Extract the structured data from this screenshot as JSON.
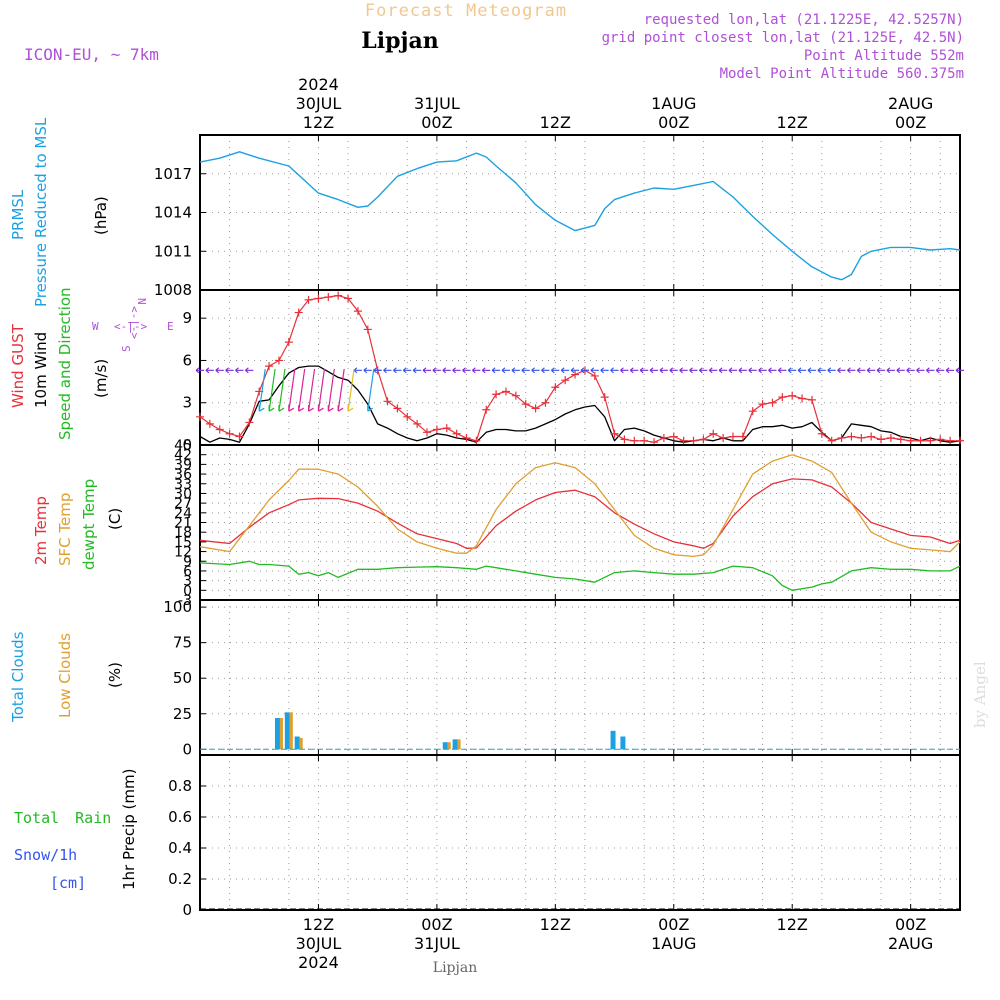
{
  "header": {
    "title": "Forecast Meteogram",
    "model": "ICON-EU, ~ 7km",
    "location": "Lipjan",
    "requested": "requested lon,lat (21.1225E, 42.5257N)",
    "gridpoint": "grid point closest lon,lat (21.125E, 42.5N)",
    "point_alt": "Point Altitude 552m",
    "model_alt": "Model Point Altitude 560.375m",
    "footer_location": "Lipjan",
    "watermark": "by Angel"
  },
  "time_axis": {
    "top_ticks": [
      {
        "h": 12,
        "lines": [
          "2024",
          "30JUL",
          "12Z"
        ]
      },
      {
        "h": 24,
        "lines": [
          "31JUL",
          "00Z"
        ]
      },
      {
        "h": 36,
        "lines": [
          "12Z"
        ]
      },
      {
        "h": 48,
        "lines": [
          "1AUG",
          "00Z"
        ]
      },
      {
        "h": 60,
        "lines": [
          "12Z"
        ]
      },
      {
        "h": 72,
        "lines": [
          "2AUG",
          "00Z"
        ]
      }
    ],
    "bottom_ticks": [
      {
        "h": 12,
        "lines": [
          "12Z",
          "30JUL",
          "2024"
        ]
      },
      {
        "h": 24,
        "lines": [
          "00Z",
          "31JUL"
        ]
      },
      {
        "h": 36,
        "lines": [
          "12Z"
        ]
      },
      {
        "h": 48,
        "lines": [
          "00Z",
          "1AUG"
        ]
      },
      {
        "h": 60,
        "lines": [
          "12Z"
        ]
      },
      {
        "h": 72,
        "lines": [
          "00Z",
          "2AUG"
        ]
      }
    ]
  },
  "panels": {
    "pressure": {
      "labels": [
        "PRMSL",
        "Pressure Reduced to MSL",
        "(hPa)"
      ]
    },
    "wind": {
      "labels": [
        "Wind GUST",
        "10m Wind",
        "Speed and Direction",
        "(m/s)"
      ],
      "compass": [
        "N",
        "S",
        "W",
        "E"
      ]
    },
    "temp": {
      "labels": [
        "2m Temp",
        "SFC Temp",
        "dewpt Temp",
        "(C)"
      ]
    },
    "clouds": {
      "labels": [
        "Total Clouds",
        "Low Clouds",
        "(%)"
      ]
    },
    "precip": {
      "labels": [
        "Total",
        "Rain",
        "Snow/1h",
        "[cm]",
        "1hr Precip (mm)"
      ]
    }
  },
  "colors": {
    "pressure": "#1ba1e2",
    "gust": "#e8303a",
    "wind": "#000000",
    "t2m": "#e8303a",
    "tsfc": "#e0a030",
    "dewpt": "#22bb22",
    "total_clouds": "#1ba1e2",
    "low_clouds": "#e0a030",
    "rain": "#22bb22",
    "snow": "#3355ee",
    "meta": "#b04fd8",
    "title": "#f0c890",
    "grid": "#999999"
  },
  "chart_data": [
    {
      "type": "line",
      "title": "",
      "ylabel": "PRMSL Pressure Reduced to MSL (hPa)",
      "ylim": [
        1008,
        1020
      ],
      "yticks": [
        1008,
        1011,
        1014,
        1017
      ],
      "grid": true,
      "series": [
        {
          "name": "PRMSL",
          "x": [
            0,
            2,
            4,
            6,
            9,
            11,
            12,
            14,
            16,
            17,
            18,
            20,
            22,
            24,
            26,
            28,
            29,
            30,
            32,
            34,
            36,
            38,
            40,
            41,
            42,
            44,
            46,
            48,
            50,
            52,
            53,
            54,
            56,
            58,
            60,
            62,
            64,
            65,
            66,
            67,
            68,
            70,
            72,
            74,
            76,
            77
          ],
          "values": [
            1017.9,
            1018.2,
            1018.7,
            1018.2,
            1017.6,
            1016.2,
            1015.5,
            1015.0,
            1014.4,
            1014.5,
            1015.2,
            1016.8,
            1017.4,
            1017.9,
            1018.0,
            1018.6,
            1018.3,
            1017.6,
            1016.3,
            1014.6,
            1013.4,
            1012.6,
            1013.0,
            1014.3,
            1015.0,
            1015.5,
            1015.9,
            1015.8,
            1016.1,
            1016.4,
            1015.8,
            1015.2,
            1013.7,
            1012.3,
            1011.0,
            1009.8,
            1009.0,
            1008.8,
            1009.2,
            1010.6,
            1011.0,
            1011.3,
            1011.3,
            1011.1,
            1011.2,
            1011.1
          ]
        }
      ]
    },
    {
      "type": "line",
      "title": "",
      "ylabel": "(m/s)",
      "ylim": [
        0,
        11
      ],
      "yticks": [
        0,
        3,
        6,
        9
      ],
      "grid": true,
      "series": [
        {
          "name": "Wind GUST",
          "x": [
            0,
            1,
            2,
            3,
            4,
            5,
            6,
            7,
            8,
            9,
            10,
            11,
            12,
            13,
            14,
            15,
            16,
            17,
            18,
            19,
            20,
            21,
            22,
            23,
            24,
            25,
            26,
            27,
            28,
            29,
            30,
            31,
            32,
            33,
            34,
            35,
            36,
            37,
            38,
            39,
            40,
            41,
            42,
            43,
            44,
            45,
            46,
            47,
            48,
            49,
            50,
            51,
            52,
            53,
            54,
            55,
            56,
            57,
            58,
            59,
            60,
            61,
            62,
            63,
            64,
            65,
            66,
            67,
            68,
            69,
            70,
            71,
            72,
            73,
            74,
            75,
            76,
            77
          ],
          "values": [
            2.0,
            1.5,
            1.1,
            0.8,
            0.6,
            1.6,
            3.8,
            5.6,
            6.0,
            7.3,
            9.4,
            10.3,
            10.4,
            10.5,
            10.6,
            10.4,
            9.5,
            8.2,
            5.3,
            3.1,
            2.6,
            2.0,
            1.5,
            0.9,
            1.1,
            1.2,
            0.8,
            0.5,
            0.3,
            2.5,
            3.6,
            3.8,
            3.5,
            2.9,
            2.6,
            3.0,
            4.1,
            4.6,
            5.0,
            5.3,
            4.9,
            3.4,
            0.8,
            0.4,
            0.3,
            0.3,
            0.2,
            0.5,
            0.6,
            0.3,
            0.3,
            0.4,
            0.8,
            0.5,
            0.6,
            0.6,
            2.4,
            2.9,
            3.0,
            3.4,
            3.5,
            3.3,
            3.2,
            0.8,
            0.3,
            0.5,
            0.6,
            0.5,
            0.6,
            0.4,
            0.5,
            0.4,
            0.3,
            0.3,
            0.3,
            0.4,
            0.3,
            0.3
          ]
        },
        {
          "name": "10m Wind",
          "x": [
            0,
            1,
            2,
            3,
            4,
            5,
            6,
            7,
            8,
            9,
            10,
            11,
            12,
            13,
            14,
            15,
            16,
            17,
            18,
            19,
            20,
            21,
            22,
            23,
            24,
            25,
            26,
            27,
            28,
            29,
            30,
            31,
            32,
            33,
            34,
            35,
            36,
            37,
            38,
            39,
            40,
            41,
            42,
            43,
            44,
            45,
            46,
            47,
            48,
            49,
            50,
            51,
            52,
            53,
            54,
            55,
            56,
            57,
            58,
            59,
            60,
            61,
            62,
            63,
            64,
            65,
            66,
            67,
            68,
            69,
            70,
            71,
            72,
            73,
            74,
            75,
            76,
            77
          ],
          "values": [
            0.6,
            0.2,
            0.5,
            0.4,
            0.2,
            1.5,
            3.1,
            3.2,
            4.2,
            5.1,
            5.5,
            5.6,
            5.6,
            5.2,
            4.8,
            4.6,
            3.9,
            2.9,
            1.5,
            1.2,
            0.8,
            0.5,
            0.3,
            0.5,
            0.8,
            0.7,
            0.5,
            0.4,
            0.2,
            0.9,
            1.1,
            1.1,
            1.0,
            1.0,
            1.2,
            1.5,
            1.8,
            2.2,
            2.5,
            2.7,
            2.8,
            2.0,
            0.3,
            1.1,
            1.2,
            1.0,
            0.7,
            0.5,
            0.3,
            0.2,
            0.3,
            0.4,
            0.3,
            0.5,
            0.3,
            0.3,
            1.1,
            1.3,
            1.3,
            1.4,
            1.2,
            1.3,
            1.6,
            0.9,
            0.3,
            0.5,
            1.5,
            1.4,
            1.3,
            1.0,
            0.9,
            0.6,
            0.5,
            0.3,
            0.5,
            0.3,
            0.2,
            0.3
          ]
        }
      ]
    },
    {
      "type": "line",
      "title": "",
      "ylabel": "(C)",
      "ylim": [
        -3,
        45
      ],
      "yticks": [
        -3,
        0,
        3,
        6,
        9,
        12,
        15,
        18,
        21,
        24,
        27,
        30,
        33,
        36,
        39,
        42,
        45
      ],
      "grid": true,
      "series": [
        {
          "name": "2m Temp",
          "x": [
            0,
            3,
            5,
            7,
            9,
            10,
            12,
            14,
            16,
            18,
            20,
            22,
            24,
            26,
            27,
            28,
            30,
            32,
            34,
            36,
            38,
            40,
            42,
            44,
            46,
            48,
            50,
            51,
            52,
            54,
            56,
            58,
            60,
            62,
            64,
            66,
            68,
            70,
            72,
            74,
            76,
            77
          ],
          "values": [
            15.5,
            14.5,
            19.5,
            24.0,
            26.5,
            28.0,
            28.5,
            28.4,
            27.0,
            24.5,
            20.8,
            17.5,
            16.0,
            14.5,
            13.0,
            13.1,
            20.0,
            24.5,
            28.0,
            30.3,
            31.0,
            29.0,
            24.0,
            20.5,
            17.5,
            15.0,
            13.8,
            13.0,
            14.5,
            23.0,
            29.0,
            33.0,
            34.5,
            34.2,
            32.0,
            27.0,
            21.0,
            19.0,
            17.0,
            16.5,
            14.5,
            15.5
          ]
        },
        {
          "name": "SFC Temp",
          "x": [
            0,
            3,
            5,
            7,
            9,
            10,
            12,
            14,
            16,
            18,
            20,
            22,
            24,
            26,
            27,
            28,
            30,
            32,
            34,
            36,
            38,
            40,
            42,
            44,
            46,
            48,
            50,
            51,
            52,
            54,
            56,
            58,
            60,
            62,
            64,
            66,
            68,
            70,
            72,
            74,
            76,
            77
          ],
          "values": [
            13.5,
            12.0,
            20.0,
            28.0,
            34.0,
            37.5,
            37.5,
            36.0,
            32.0,
            26.0,
            19.0,
            15.0,
            13.0,
            11.5,
            11.5,
            13.8,
            25.0,
            33.0,
            38.0,
            39.5,
            38.0,
            33.0,
            25.0,
            17.0,
            13.0,
            11.0,
            10.5,
            11.0,
            14.0,
            25.0,
            36.0,
            40.0,
            42.0,
            40.0,
            36.5,
            27.0,
            18.0,
            15.0,
            13.0,
            12.5,
            12.0,
            15.0
          ]
        },
        {
          "name": "dewpt Temp",
          "x": [
            0,
            3,
            5,
            6,
            7,
            9,
            10,
            11,
            12,
            13,
            14,
            16,
            18,
            20,
            22,
            24,
            26,
            28,
            29,
            30,
            32,
            34,
            36,
            38,
            40,
            42,
            44,
            46,
            48,
            50,
            52,
            54,
            56,
            58,
            59,
            60,
            62,
            63,
            64,
            66,
            68,
            70,
            72,
            74,
            76,
            77
          ],
          "values": [
            8.5,
            8.0,
            9.0,
            8.0,
            8.0,
            7.5,
            5.0,
            5.5,
            4.5,
            5.5,
            4.0,
            6.5,
            6.5,
            7.0,
            7.2,
            7.3,
            7.0,
            6.5,
            7.5,
            7.0,
            6.0,
            5.0,
            4.0,
            3.5,
            2.5,
            5.5,
            6.0,
            5.5,
            5.0,
            5.0,
            5.5,
            7.5,
            7.0,
            4.5,
            1.5,
            0.0,
            1.0,
            2.0,
            2.5,
            6.0,
            7.0,
            6.5,
            6.5,
            6.0,
            6.0,
            7.5
          ]
        }
      ]
    },
    {
      "type": "bar",
      "title": "",
      "ylabel": "(%)",
      "ylim": [
        -4,
        105
      ],
      "yticks": [
        0,
        25,
        50,
        75,
        100
      ],
      "grid": true,
      "series": [
        {
          "name": "Total Clouds",
          "x": [
            8,
            9,
            10,
            25,
            26,
            42,
            43
          ],
          "values": [
            22,
            26,
            9,
            5,
            7,
            13,
            9
          ]
        },
        {
          "name": "Low Clouds",
          "x": [
            8,
            9,
            10,
            25,
            26
          ],
          "values": [
            22,
            26,
            8,
            5,
            7
          ]
        }
      ]
    },
    {
      "type": "bar",
      "title": "",
      "ylabel": "1hr Precip (mm)",
      "ylim": [
        0,
        1
      ],
      "yticks": [
        0,
        0.2,
        0.4,
        0.6,
        0.8
      ],
      "grid": true,
      "series": [
        {
          "name": "Total Rain",
          "x": [],
          "values": []
        },
        {
          "name": "Snow/1h",
          "x": [],
          "values": []
        }
      ]
    }
  ]
}
